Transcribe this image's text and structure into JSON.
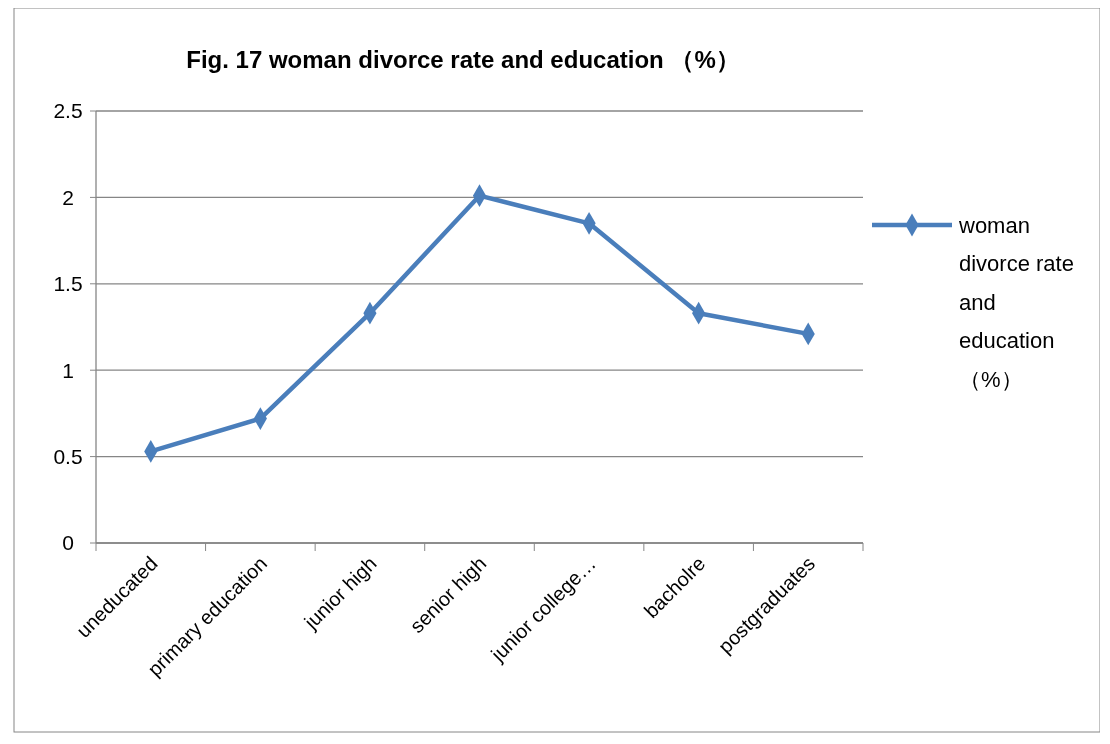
{
  "chart_data": {
    "type": "line",
    "title": "Fig. 17 woman divorce rate and education （%）",
    "categories": [
      "uneducated",
      "primary education",
      "junior high",
      "senior high",
      "junior college…",
      "bacholre",
      "postgraduates"
    ],
    "series": [
      {
        "name": "woman divorce rate and education （%）",
        "color": "#4a7ebb",
        "values": [
          0.53,
          0.72,
          1.33,
          2.01,
          1.85,
          1.33,
          1.21
        ]
      }
    ],
    "ylim": [
      0,
      2.5
    ],
    "yticks": [
      0,
      0.5,
      1,
      1.5,
      2,
      2.5
    ],
    "grid": "y",
    "legend": "right",
    "marker": "diamond",
    "line_style": "solid"
  }
}
